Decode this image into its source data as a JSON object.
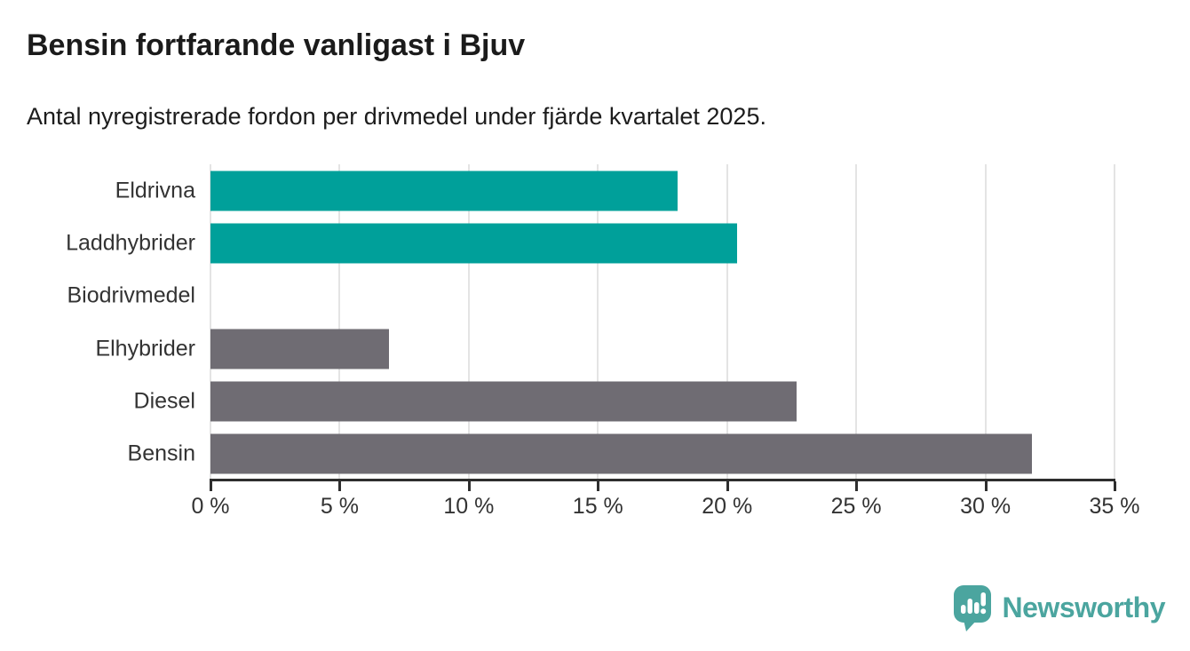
{
  "header": {
    "title": "Bensin fortfarande vanligast i Bjuv",
    "subtitle": "Antal nyregistrerade fordon per drivmedel under fjärde kvartalet 2025."
  },
  "chart_data": {
    "type": "bar",
    "orientation": "horizontal",
    "title": "Bensin fortfarande vanligast i Bjuv",
    "subtitle": "Antal nyregistrerade fordon per drivmedel under fjärde kvartalet 2025.",
    "categories": [
      "Eldrivna",
      "Laddhybrider",
      "Biodrivmedel",
      "Elhybrider",
      "Diesel",
      "Bensin"
    ],
    "values": [
      18.1,
      20.4,
      0,
      6.9,
      22.7,
      31.8
    ],
    "unit": "%",
    "bar_colors": [
      "#00a09a",
      "#00a09a",
      "#6f6c73",
      "#6f6c73",
      "#6f6c73",
      "#6f6c73"
    ],
    "xlabel": "",
    "ylabel": "",
    "xlim": [
      0,
      35
    ],
    "x_ticks": [
      0,
      5,
      10,
      15,
      20,
      25,
      30,
      35
    ],
    "x_tick_labels": [
      "0 %",
      "5 %",
      "10 %",
      "15 %",
      "20 %",
      "25 %",
      "30 %",
      "35 %"
    ],
    "grid": "vertical-gridlines-on",
    "legend": "none"
  },
  "branding": {
    "logo_text": "Newsworthy",
    "logo_icon": "newsworthy-chart-bubble-icon"
  },
  "colors": {
    "accent_teal": "#00a09a",
    "neutral_gray": "#6f6c73",
    "gridline": "#e4e4e4",
    "axis": "#2e2e2e",
    "title_text": "#1b1b1b",
    "label_text": "#333333",
    "logo_teal": "#4ba59f"
  }
}
